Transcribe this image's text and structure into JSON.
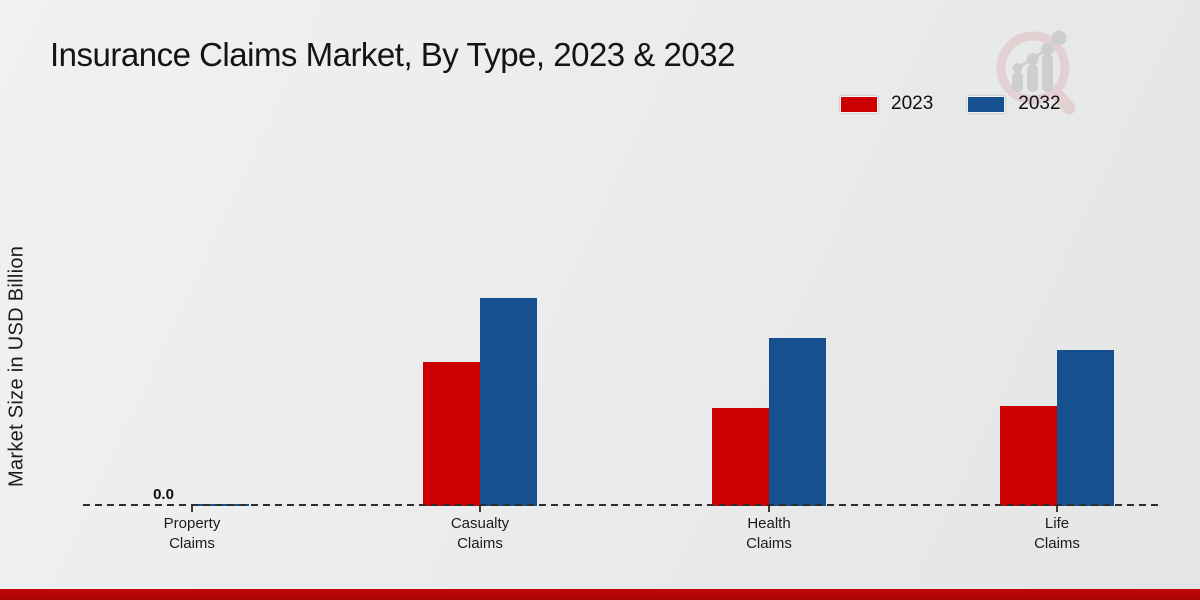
{
  "page": {
    "title": "Insurance Claims Market, By Type, 2023 & 2032"
  },
  "y_axis": {
    "label": "Market Size in USD Billion"
  },
  "legend": {
    "position": "top-right"
  },
  "chart_data": {
    "type": "bar",
    "title": "Insurance Claims Market, By Type, 2023 & 2032",
    "xlabel": "",
    "ylabel": "Market Size in USD Billion",
    "units": "USD Billion",
    "categories": [
      "Property Claims",
      "Casualty Claims",
      "Health Claims",
      "Life Claims"
    ],
    "series": [
      {
        "name": "2023",
        "color": "#cc0000",
        "values": [
          0.0,
          1.44,
          0.98,
          1.0
        ],
        "point_labels": [
          "0.0",
          null,
          null,
          null
        ]
      },
      {
        "name": "2032",
        "color": "#17508e",
        "values": [
          0.02,
          2.08,
          1.68,
          1.56
        ],
        "point_labels": [
          null,
          null,
          null,
          null
        ]
      }
    ],
    "ylim": [
      0,
      3.0
    ],
    "grid": false,
    "y_ticks_shown": false,
    "baseline_style": "dashed",
    "legend_position": "top-right"
  },
  "colors": {
    "series_2023": "#cc0000",
    "series_2032": "#17508e",
    "footer_strip": "#b50505",
    "background": "#e9eaea",
    "text": "#161616"
  },
  "logo": {
    "name": "magnifier-bar-chart-watermark"
  }
}
